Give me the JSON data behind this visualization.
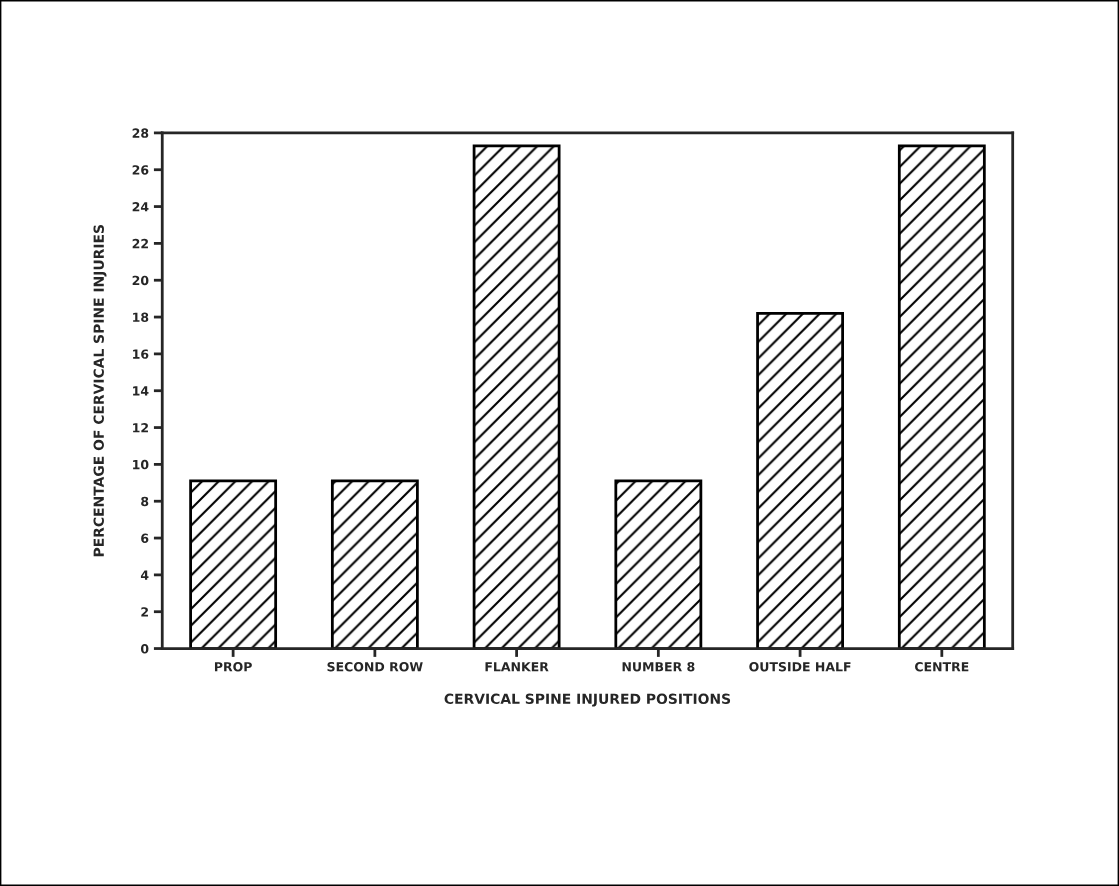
{
  "chart_data": {
    "type": "bar",
    "xlabel": "CERVICAL SPINE INJURED POSITIONS",
    "ylabel": "PERCENTAGE OF CERVICAL SPINE INJURIES",
    "categories": [
      "PROP",
      "SECOND ROW",
      "FLANKER",
      "NUMBER 8",
      "OUTSIDE HALF",
      "CENTRE"
    ],
    "values": [
      9.1,
      9.1,
      27.3,
      9.1,
      18.2,
      27.3
    ],
    "color": "#000000",
    "ylim": [
      0,
      28
    ],
    "yticks": [
      0,
      2,
      4,
      6,
      8,
      10,
      12,
      14,
      16,
      18,
      20,
      22,
      24,
      26,
      28
    ],
    "grid": false,
    "legend": false
  }
}
